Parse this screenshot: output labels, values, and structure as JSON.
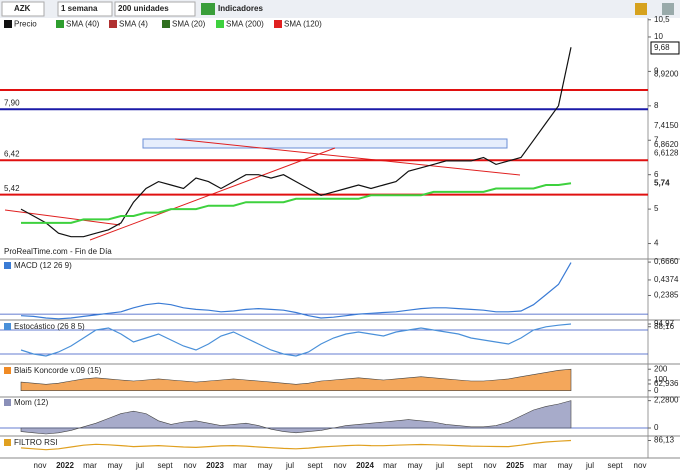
{
  "toolbar": {
    "symbol": "AZK",
    "period": "1 semana",
    "units": "200 unidades",
    "indicators": "Indicadores"
  },
  "chart_data": {
    "type": "line",
    "log_scale": false,
    "series": [
      {
        "name": "Precio",
        "color": "#111111",
        "values": [
          5.0,
          4.8,
          4.6,
          4.3,
          4.2,
          4.2,
          4.3,
          4.4,
          4.6,
          5.2,
          5.6,
          5.8,
          5.7,
          5.6,
          5.9,
          5.8,
          5.6,
          5.8,
          6.0,
          6.0,
          5.9,
          6.0,
          5.8,
          5.6,
          5.4,
          5.5,
          5.6,
          5.7,
          5.6,
          5.7,
          5.8,
          6.1,
          6.2,
          6.3,
          6.4,
          6.4,
          6.4,
          6.5,
          6.3,
          6.4,
          6.5,
          7.0,
          7.5,
          8.0,
          9.7
        ]
      },
      {
        "name": "SMA (40)",
        "color": "#2e9e2e"
      },
      {
        "name": "SMA (4)",
        "color": "#b03030"
      },
      {
        "name": "SMA (20)",
        "color": "#2f6f1f"
      },
      {
        "name": "SMA (200)",
        "color": "#3ed13e",
        "values": [
          4.6,
          4.6,
          4.6,
          4.6,
          4.6,
          4.7,
          4.7,
          4.7,
          4.8,
          4.8,
          4.9,
          4.9,
          5.0,
          5.0,
          5.0,
          5.1,
          5.1,
          5.1,
          5.2,
          5.2,
          5.2,
          5.2,
          5.3,
          5.3,
          5.3,
          5.3,
          5.3,
          5.3,
          5.4,
          5.4,
          5.4,
          5.4,
          5.4,
          5.5,
          5.5,
          5.5,
          5.5,
          5.5,
          5.6,
          5.6,
          5.6,
          5.6,
          5.7,
          5.7,
          5.75
        ]
      },
      {
        "name": "SMA (120)",
        "color": "#e02020"
      }
    ],
    "ylim": [
      3.58,
      10.58
    ],
    "yticks": [
      {
        "value": 10.5,
        "label": "10,5"
      },
      10,
      9,
      8,
      7,
      6,
      5,
      4
    ],
    "levels": [
      {
        "value": 7.9,
        "label": "7,90",
        "color": "#1a1aa8"
      },
      {
        "value": 6.42,
        "label": "6,42",
        "color": "#e01010"
      },
      {
        "value": 5.42,
        "label": "5,42",
        "color": "#e01010"
      },
      {
        "value": 8.46,
        "color": "#e01010"
      }
    ],
    "price_labels": [
      {
        "value": 9.68,
        "label": "9,68",
        "color": "#000000"
      },
      {
        "value": 8.92,
        "label": "8,9200",
        "color": "#333333"
      },
      {
        "value": 7.415,
        "label": "7,4150",
        "color": "#333333"
      },
      {
        "value": 6.862,
        "label": "6,8620",
        "color": "#2e9e2e"
      },
      {
        "value": 6.6128,
        "label": "6,6128",
        "color": "#2e9e2e"
      },
      {
        "value": 5.74,
        "label": "5,74",
        "color": "#2bb52b"
      }
    ],
    "x_labels": [
      "nov",
      "2022",
      "mar",
      "may",
      "jul",
      "sept",
      "nov",
      "2023",
      "mar",
      "may",
      "jul",
      "sept",
      "nov",
      "2024",
      "mar",
      "may",
      "jul",
      "sept",
      "nov",
      "2025",
      "mar",
      "may",
      "jul",
      "sept",
      "nov"
    ],
    "source": "ProRealTime.com - Fin de Día"
  },
  "panels": [
    {
      "title": "MACD (12 26 9)",
      "type": "line",
      "color": "#3a7bd5",
      "ylim": [
        -0.05,
        0.68
      ],
      "yticks": [
        {
          "value": 0.666,
          "label": "0,6660"
        },
        {
          "value": 0.4374,
          "label": "0,4374"
        },
        {
          "value": 0.2385,
          "label": "0,2385"
        }
      ],
      "hlines": [
        0
      ],
      "values": [
        -0.02,
        -0.03,
        -0.05,
        -0.06,
        -0.05,
        -0.03,
        -0.01,
        0.01,
        0.03,
        0.08,
        0.12,
        0.14,
        0.12,
        0.08,
        0.06,
        0.05,
        0.03,
        0.04,
        0.06,
        0.07,
        0.06,
        0.05,
        0.02,
        -0.02,
        -0.05,
        -0.04,
        -0.02,
        0.0,
        0.01,
        0.02,
        0.03,
        0.05,
        0.07,
        0.08,
        0.08,
        0.07,
        0.06,
        0.05,
        0.03,
        0.03,
        0.04,
        0.12,
        0.25,
        0.38,
        0.66
      ]
    },
    {
      "title": "Estocástico (26 8 5)",
      "type": "line",
      "color": "#4a90d9",
      "ylim": [
        0,
        100
      ],
      "yticks": [
        {
          "value": 94.97,
          "label": "94,97"
        },
        {
          "value": 88.16,
          "label": "88,16"
        }
      ],
      "hlines": [
        80,
        20
      ],
      "values": [
        30,
        20,
        15,
        25,
        40,
        60,
        80,
        85,
        70,
        50,
        60,
        70,
        55,
        40,
        30,
        45,
        65,
        75,
        60,
        45,
        30,
        20,
        15,
        25,
        45,
        60,
        70,
        75,
        70,
        65,
        75,
        80,
        85,
        80,
        75,
        70,
        60,
        55,
        50,
        45,
        60,
        80,
        88,
        92,
        95
      ]
    },
    {
      "title": "Blai5 Koncorde v.09 (15)",
      "type": "area",
      "color": "#f08a24",
      "ylim": [
        -40,
        230
      ],
      "yticks": [
        200,
        100,
        {
          "value": 62.936,
          "label": "62,936"
        },
        0
      ],
      "hlines": [],
      "values": [
        80,
        70,
        60,
        70,
        90,
        110,
        120,
        110,
        100,
        90,
        100,
        110,
        100,
        90,
        80,
        90,
        100,
        110,
        100,
        90,
        80,
        70,
        60,
        70,
        90,
        100,
        110,
        120,
        110,
        100,
        110,
        120,
        130,
        120,
        110,
        100,
        90,
        90,
        100,
        110,
        130,
        150,
        170,
        190,
        200
      ]
    },
    {
      "title": "Mom (12)",
      "type": "area",
      "color": "#8a8fb8",
      "ylim": [
        -0.5,
        2.5
      ],
      "yticks": [
        {
          "value": 2.28,
          "label": "2,2800"
        },
        0
      ],
      "hlines": [
        0
      ],
      "values": [
        -0.3,
        -0.4,
        -0.5,
        -0.4,
        -0.2,
        0.1,
        0.4,
        0.8,
        1.2,
        1.4,
        1.2,
        0.6,
        0.3,
        0.5,
        0.6,
        0.4,
        0.2,
        0.3,
        0.4,
        0.2,
        -0.1,
        -0.3,
        -0.4,
        -0.3,
        -0.2,
        0.0,
        0.2,
        0.3,
        0.4,
        0.5,
        0.6,
        0.7,
        0.6,
        0.5,
        0.3,
        0.2,
        0.1,
        0.1,
        0.2,
        0.5,
        1.0,
        1.5,
        1.8,
        2.0,
        2.28
      ]
    },
    {
      "title": "FILTRO RSI",
      "type": "line",
      "color": "#e0a020",
      "ylim": [
        0,
        100
      ],
      "yticks": [
        {
          "value": 86.13,
          "label": "86,13"
        }
      ],
      "hlines": [],
      "values": [
        45,
        40,
        35,
        40,
        50,
        60,
        65,
        62,
        58,
        52,
        55,
        58,
        54,
        50,
        48,
        52,
        56,
        58,
        55,
        50,
        46,
        42,
        40,
        44,
        50,
        54,
        58,
        60,
        58,
        57,
        60,
        62,
        64,
        62,
        60,
        58,
        55,
        54,
        53,
        52,
        60,
        70,
        78,
        82,
        86
      ]
    }
  ]
}
